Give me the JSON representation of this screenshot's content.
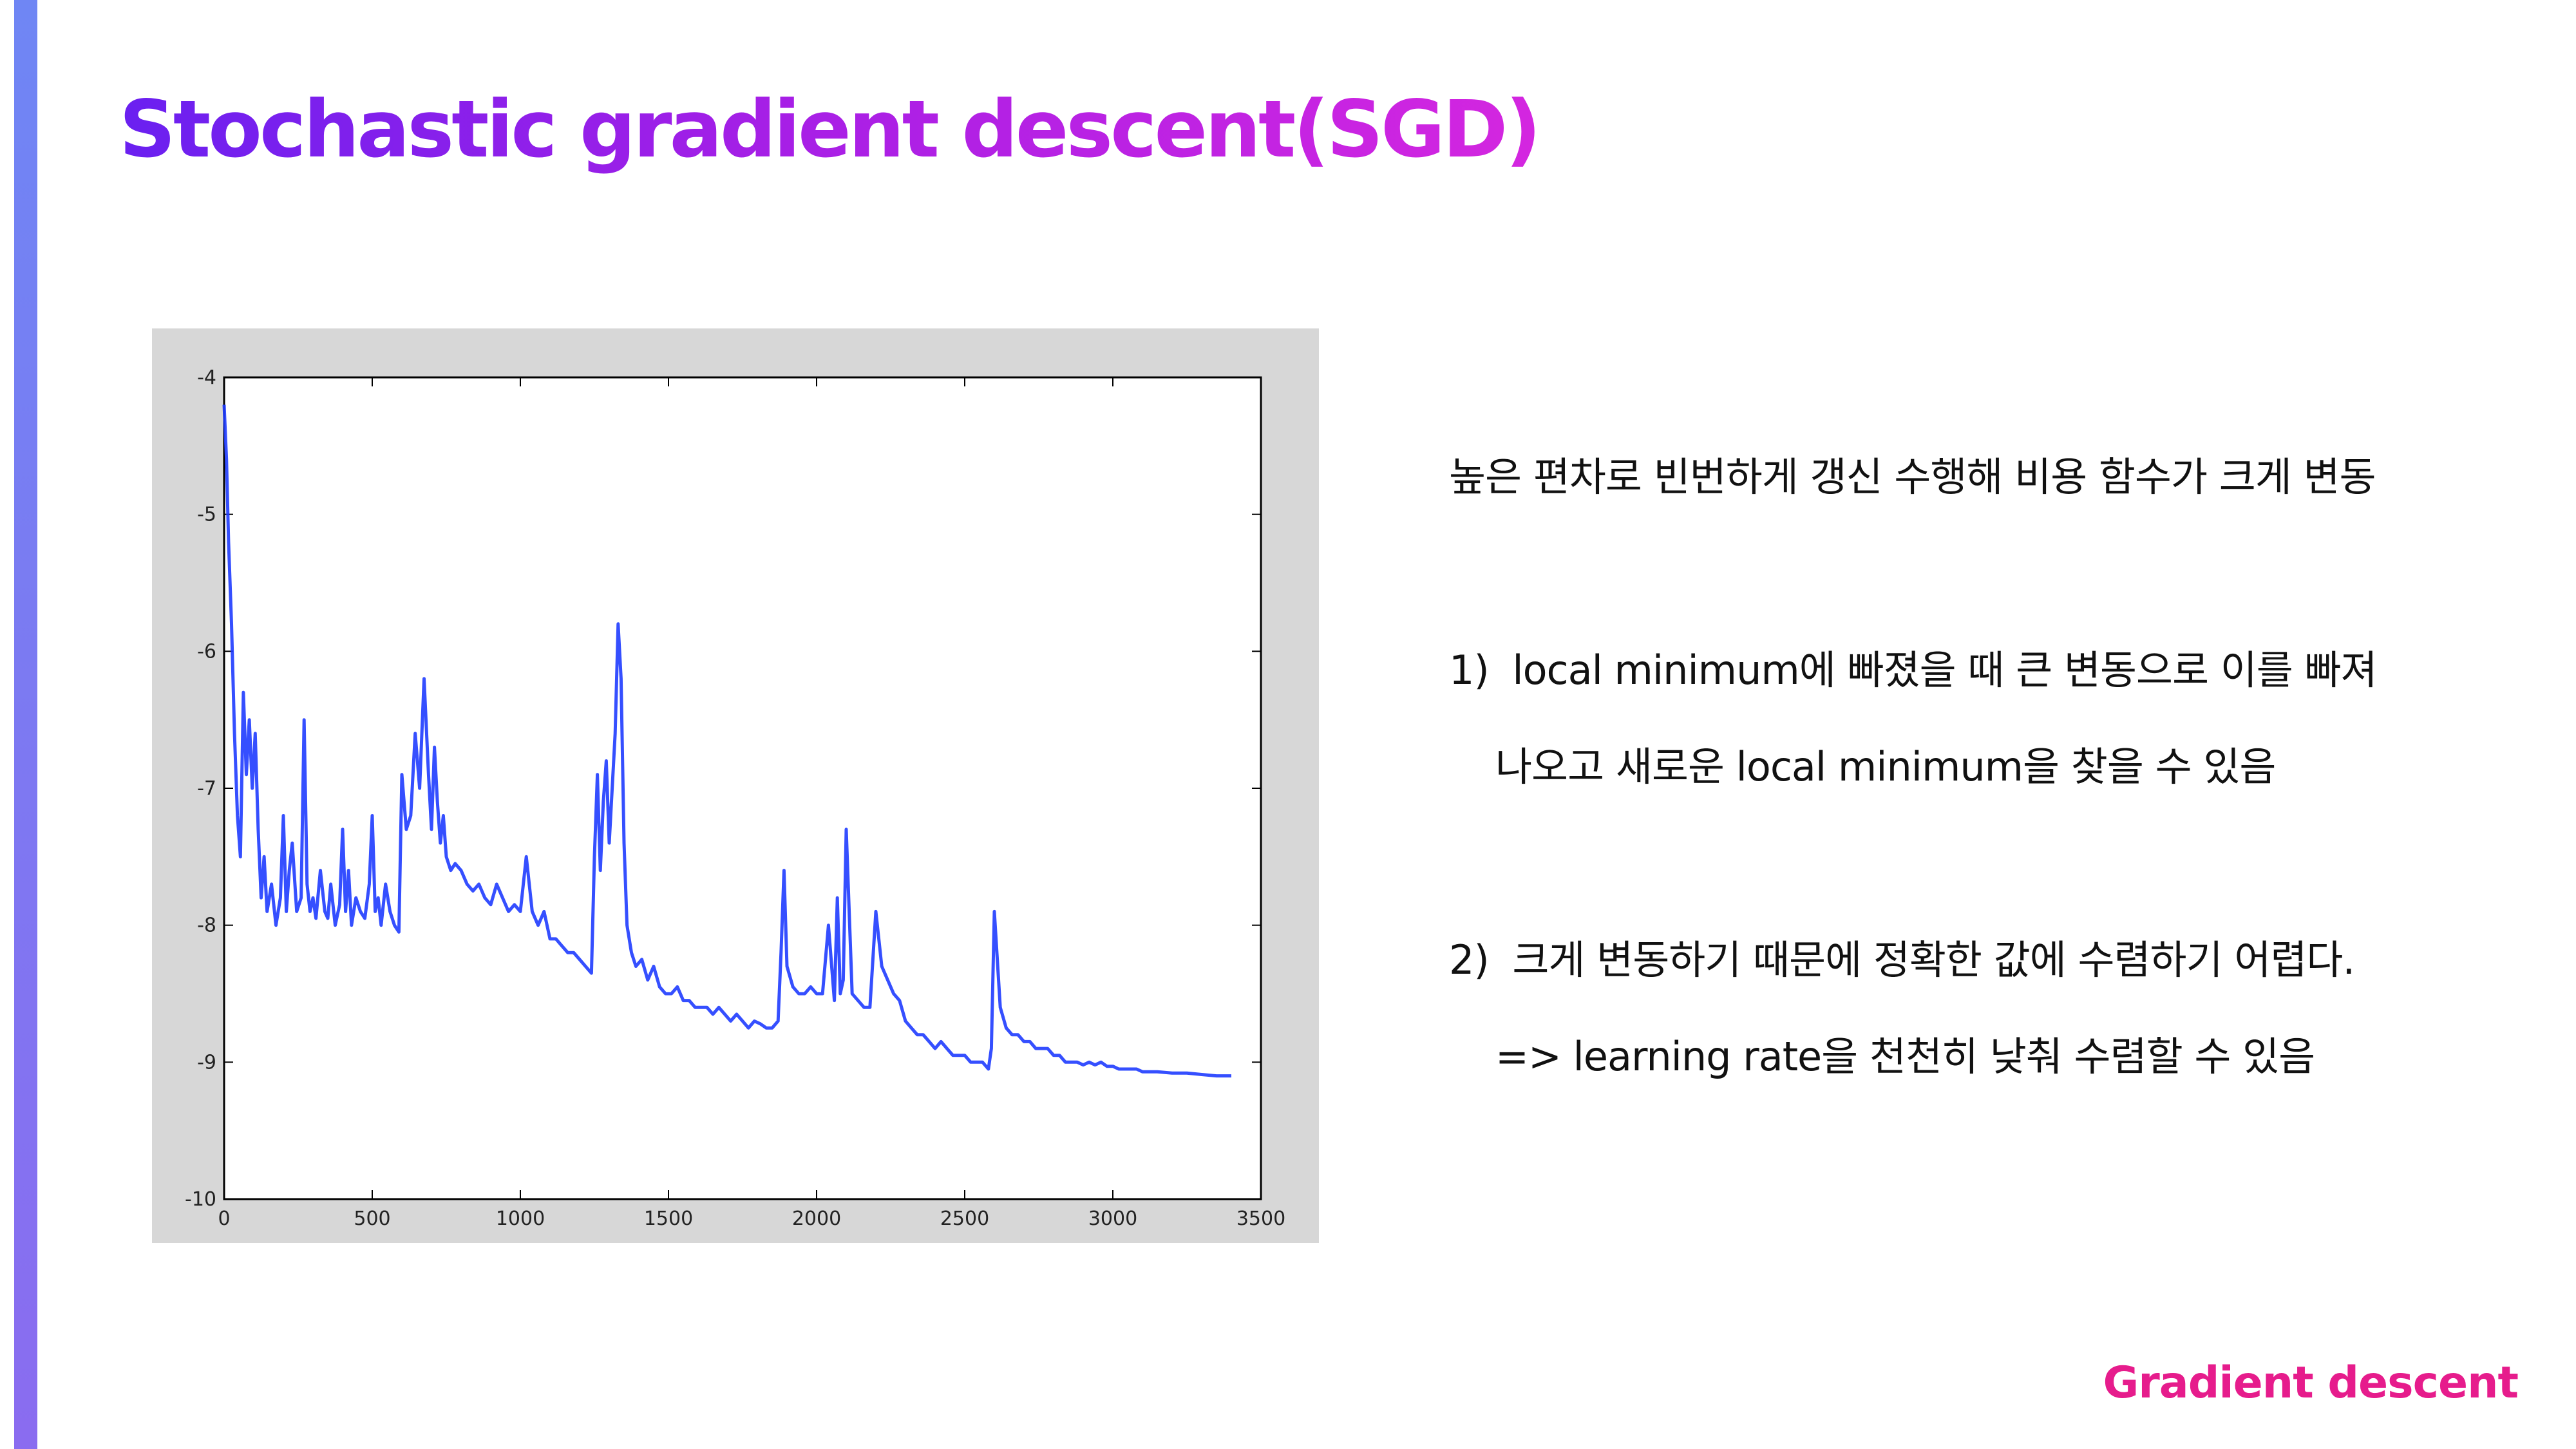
{
  "slide": {
    "title": "Stochastic gradient descent(SGD)",
    "footer": "Gradient descent",
    "colors": {
      "title_start": "#6a20f0",
      "title_end": "#d426e0",
      "footer": "#e61c8c",
      "side_bar": "#7b7af2"
    }
  },
  "bullets": {
    "line1": "높은 편차로 빈번하게 갱신 수행해 비용 함수가 크게 변동",
    "item1_num": "1)",
    "item1_line1": "local minimum에 빠졌을 때 큰 변동으로 이를 빠져",
    "item1_line2": "나오고 새로운 local minimum을 찾을 수 있음",
    "item2_num": "2)",
    "item2_line1": "크게 변동하기 때문에 정확한 값에 수렴하기 어렵다.",
    "item2_line2": "=> learning rate을 천천히 낮춰 수렴할 수 있음"
  },
  "chart_data": {
    "type": "line",
    "title": "",
    "xlabel": "",
    "ylabel": "",
    "xlim": [
      0,
      3500
    ],
    "ylim": [
      -10,
      -4
    ],
    "xticks": [
      0,
      500,
      1000,
      1500,
      2000,
      2500,
      3000,
      3500
    ],
    "yticks": [
      -4,
      -5,
      -6,
      -7,
      -8,
      -9,
      -10
    ],
    "grid": false,
    "line_color": "#1f3cff",
    "series": [
      {
        "x": [
          0,
          8,
          15,
          25,
          35,
          45,
          55,
          65,
          75,
          85,
          95,
          105,
          115,
          125,
          135,
          145,
          160,
          175,
          190,
          200,
          210,
          220,
          230,
          245,
          260,
          270,
          280,
          290,
          300,
          310,
          325,
          340,
          350,
          360,
          375,
          390,
          400,
          410,
          420,
          430,
          445,
          460,
          475,
          490,
          500,
          510,
          520,
          530,
          545,
          560,
          575,
          590,
          600,
          615,
          630,
          645,
          660,
          675,
          690,
          700,
          710,
          720,
          730,
          740,
          750,
          765,
          780,
          800,
          820,
          840,
          860,
          880,
          900,
          920,
          940,
          960,
          980,
          1000,
          1020,
          1040,
          1060,
          1080,
          1100,
          1120,
          1140,
          1160,
          1180,
          1200,
          1220,
          1240,
          1250,
          1260,
          1270,
          1280,
          1290,
          1300,
          1310,
          1320,
          1330,
          1340,
          1350,
          1360,
          1375,
          1390,
          1410,
          1430,
          1450,
          1470,
          1490,
          1510,
          1530,
          1550,
          1570,
          1590,
          1610,
          1630,
          1650,
          1670,
          1690,
          1710,
          1730,
          1750,
          1770,
          1790,
          1810,
          1830,
          1850,
          1870,
          1880,
          1890,
          1900,
          1920,
          1940,
          1960,
          1980,
          2000,
          2020,
          2040,
          2060,
          2070,
          2080,
          2090,
          2100,
          2120,
          2140,
          2160,
          2180,
          2200,
          2220,
          2240,
          2260,
          2280,
          2300,
          2320,
          2340,
          2360,
          2380,
          2400,
          2420,
          2440,
          2460,
          2480,
          2500,
          2520,
          2540,
          2560,
          2580,
          2590,
          2600,
          2620,
          2640,
          2660,
          2680,
          2700,
          2720,
          2740,
          2760,
          2780,
          2800,
          2820,
          2840,
          2860,
          2880,
          2900,
          2920,
          2940,
          2960,
          2980,
          3000,
          3020,
          3040,
          3060,
          3080,
          3100,
          3150,
          3200,
          3250,
          3300,
          3350,
          3400
        ],
        "y": [
          -4.2,
          -4.6,
          -5.2,
          -5.8,
          -6.6,
          -7.2,
          -7.5,
          -6.3,
          -6.9,
          -6.5,
          -7.0,
          -6.6,
          -7.3,
          -7.8,
          -7.5,
          -7.9,
          -7.7,
          -8.0,
          -7.8,
          -7.2,
          -7.9,
          -7.6,
          -7.4,
          -7.9,
          -7.8,
          -6.5,
          -7.7,
          -7.9,
          -7.8,
          -7.95,
          -7.6,
          -7.9,
          -7.95,
          -7.7,
          -8.0,
          -7.85,
          -7.3,
          -7.9,
          -7.6,
          -8.0,
          -7.8,
          -7.9,
          -7.95,
          -7.7,
          -7.2,
          -7.9,
          -7.8,
          -8.0,
          -7.7,
          -7.9,
          -8.0,
          -8.05,
          -6.9,
          -7.3,
          -7.2,
          -6.6,
          -7.0,
          -6.2,
          -6.9,
          -7.3,
          -6.7,
          -7.1,
          -7.4,
          -7.2,
          -7.5,
          -7.6,
          -7.55,
          -7.6,
          -7.7,
          -7.75,
          -7.7,
          -7.8,
          -7.85,
          -7.7,
          -7.8,
          -7.9,
          -7.85,
          -7.9,
          -7.5,
          -7.9,
          -8.0,
          -7.9,
          -8.1,
          -8.1,
          -8.15,
          -8.2,
          -8.2,
          -8.25,
          -8.3,
          -8.35,
          -7.5,
          -6.9,
          -7.6,
          -7.1,
          -6.8,
          -7.4,
          -7.0,
          -6.6,
          -5.8,
          -6.2,
          -7.4,
          -8.0,
          -8.2,
          -8.3,
          -8.25,
          -8.4,
          -8.3,
          -8.45,
          -8.5,
          -8.5,
          -8.45,
          -8.55,
          -8.55,
          -8.6,
          -8.6,
          -8.6,
          -8.65,
          -8.6,
          -8.65,
          -8.7,
          -8.65,
          -8.7,
          -8.75,
          -8.7,
          -8.72,
          -8.75,
          -8.75,
          -8.7,
          -8.2,
          -7.6,
          -8.3,
          -8.45,
          -8.5,
          -8.5,
          -8.45,
          -8.5,
          -8.5,
          -8.0,
          -8.55,
          -7.8,
          -8.5,
          -8.4,
          -7.3,
          -8.5,
          -8.55,
          -8.6,
          -8.6,
          -7.9,
          -8.3,
          -8.4,
          -8.5,
          -8.55,
          -8.7,
          -8.75,
          -8.8,
          -8.8,
          -8.85,
          -8.9,
          -8.85,
          -8.9,
          -8.95,
          -8.95,
          -8.95,
          -9.0,
          -9.0,
          -9.0,
          -9.05,
          -8.9,
          -7.9,
          -8.6,
          -8.75,
          -8.8,
          -8.8,
          -8.85,
          -8.85,
          -8.9,
          -8.9,
          -8.9,
          -8.95,
          -8.95,
          -9.0,
          -9.0,
          -9.0,
          -9.02,
          -9.0,
          -9.02,
          -9.0,
          -9.03,
          -9.03,
          -9.05,
          -9.05,
          -9.05,
          -9.05,
          -9.07,
          -9.07,
          -9.08,
          -9.08,
          -9.09,
          -9.1,
          -9.1
        ]
      }
    ]
  }
}
